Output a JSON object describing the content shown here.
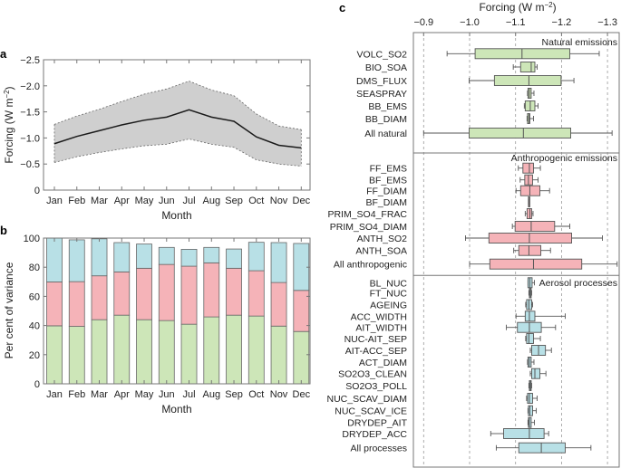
{
  "chart_data": [
    {
      "panel": "a",
      "type": "line",
      "panel_letter": "a",
      "xlabel": "Month",
      "ylabel": "Forcing (W m",
      "ylabel_sup": "−2",
      "ylabel_close": ")",
      "ylim": [
        0,
        -2.5
      ],
      "yticks": [
        0,
        -0.5,
        -1.0,
        -1.5,
        -2.0,
        -2.5
      ],
      "ytick_labels": [
        "0",
        "−0.5",
        "−1.0",
        "−1.5",
        "−2.0",
        "−2.5"
      ],
      "categories": [
        "Jan",
        "Feb",
        "Mar",
        "Apr",
        "May",
        "Jun",
        "Jul",
        "Aug",
        "Sep",
        "Oct",
        "Nov",
        "Dec"
      ],
      "series": [
        {
          "name": "mean",
          "values": [
            -0.89,
            -1.03,
            -1.14,
            -1.25,
            -1.34,
            -1.4,
            -1.54,
            -1.4,
            -1.32,
            -1.02,
            -0.86,
            -0.81
          ]
        },
        {
          "name": "upper bound",
          "values": [
            -1.26,
            -1.42,
            -1.55,
            -1.7,
            -1.84,
            -1.94,
            -2.09,
            -1.92,
            -1.81,
            -1.46,
            -1.23,
            -1.16
          ]
        },
        {
          "name": "lower bound",
          "values": [
            -0.53,
            -0.64,
            -0.72,
            -0.79,
            -0.85,
            -0.88,
            -0.98,
            -0.88,
            -0.82,
            -0.58,
            -0.5,
            -0.46
          ]
        }
      ],
      "grid": false,
      "colors": {
        "band": "#cfcfcf",
        "line": "#1a1a1a",
        "bound": "#666666"
      }
    },
    {
      "panel": "b",
      "type": "bar",
      "stacked": true,
      "panel_letter": "b",
      "xlabel": "Month",
      "ylabel": "Per cent of variance",
      "ylim": [
        0,
        100
      ],
      "yticks": [
        0,
        20,
        40,
        60,
        80,
        100
      ],
      "ytick_labels": [
        "0",
        "20",
        "40",
        "60",
        "80",
        "100"
      ],
      "categories": [
        "Jan",
        "Feb",
        "Mar",
        "Apr",
        "May",
        "Jun",
        "Jul",
        "Aug",
        "Sep",
        "Oct",
        "Nov",
        "Dec"
      ],
      "series": [
        {
          "name": "Natural emissions",
          "color": "#cde6b8",
          "values": [
            39.8,
            39.4,
            44.0,
            47.1,
            44.0,
            43.4,
            40.9,
            45.9,
            47.1,
            46.5,
            39.6,
            35.9
          ]
        },
        {
          "name": "Anthropogenic emissions",
          "color": "#f5b3b8",
          "values": [
            30.1,
            30.7,
            30.1,
            29.7,
            35.3,
            38.5,
            39.8,
            37.1,
            32.2,
            31.1,
            29.9,
            28.2
          ]
        },
        {
          "name": "Aerosol processes",
          "color": "#b8e0e6",
          "values": [
            30.1,
            28.7,
            25.4,
            20.1,
            16.6,
            11.7,
            11.6,
            10.6,
            13.2,
            19.5,
            27.4,
            32.2
          ]
        }
      ],
      "grid": false
    },
    {
      "panel": "c",
      "type": "boxplot",
      "panel_letter": "c",
      "title": "Forcing (W m",
      "title_sup": "−2",
      "title_close": ")",
      "xlim": [
        -0.87,
        -1.325
      ],
      "xticks": [
        -0.9,
        -1.0,
        -1.1,
        -1.2,
        -1.3
      ],
      "xtick_labels": [
        "−0.9",
        "−1.0",
        "−1.1",
        "−1.2",
        "−1.3"
      ],
      "grid": "vertical dashed",
      "groups": [
        {
          "name": "Natural emissions",
          "color": "#cde6b8",
          "items": [
            {
              "label": "VOLC_SO2",
              "wl": -0.951,
              "q1": -1.012,
              "med": -1.114,
              "q3": -1.218,
              "wh": -1.282
            },
            {
              "label": "BIO_SOA",
              "wl": -1.095,
              "q1": -1.111,
              "med": -1.134,
              "q3": -1.142,
              "wh": -1.147
            },
            {
              "label": "DMS_FLUX",
              "wl": -0.999,
              "q1": -1.054,
              "med": -1.129,
              "q3": -1.199,
              "wh": -1.227
            },
            {
              "label": "SEASPRAY",
              "wl": -1.126,
              "q1": -1.127,
              "med": -1.13,
              "q3": -1.134,
              "wh": -1.14
            },
            {
              "label": "BB_EMS",
              "wl": -1.119,
              "q1": -1.121,
              "med": -1.132,
              "q3": -1.142,
              "wh": -1.149
            },
            {
              "label": "BB_DIAM",
              "wl": -1.125,
              "q1": -1.126,
              "med": -1.129,
              "q3": -1.131,
              "wh": -1.139
            },
            {
              "label": "All natural",
              "wl": -0.9,
              "q1": -0.999,
              "med": -1.117,
              "q3": -1.22,
              "wh": -1.31
            }
          ]
        },
        {
          "name": "Anthropogenic emissions",
          "color": "#f5b3b8",
          "items": [
            {
              "label": "FF_EMS",
              "wl": -1.106,
              "q1": -1.116,
              "med": -1.13,
              "q3": -1.139,
              "wh": -1.154
            },
            {
              "label": "BF_EMS",
              "wl": -1.11,
              "q1": -1.12,
              "med": -1.128,
              "q3": -1.137,
              "wh": -1.149
            },
            {
              "label": "FF_DIAM",
              "wl": -1.101,
              "q1": -1.111,
              "med": -1.131,
              "q3": -1.153,
              "wh": -1.174
            },
            {
              "label": "BF_DIAM",
              "wl": -1.128,
              "q1": -1.128,
              "med": -1.129,
              "q3": -1.13,
              "wh": -1.13
            },
            {
              "label": "PRIM_SO4_FRAC",
              "wl": -1.121,
              "q1": -1.125,
              "med": -1.131,
              "q3": -1.135,
              "wh": -1.138
            },
            {
              "label": "PRIM_SO4_DIAM",
              "wl": -1.093,
              "q1": -1.099,
              "med": -1.134,
              "q3": -1.185,
              "wh": -1.218
            },
            {
              "label": "ANTH_SO2",
              "wl": -0.991,
              "q1": -1.042,
              "med": -1.13,
              "q3": -1.222,
              "wh": -1.289
            },
            {
              "label": "ANTH_SOA",
              "wl": -1.096,
              "q1": -1.107,
              "med": -1.129,
              "q3": -1.155,
              "wh": -1.176
            },
            {
              "label": "All anthropogenic",
              "wl": -1.0,
              "q1": -1.044,
              "med": -1.139,
              "q3": -1.244,
              "wh": -1.321
            }
          ]
        },
        {
          "name": "Aerosol processes",
          "color": "#b8e0e6",
          "items": [
            {
              "label": "BL_NUC",
              "wl": -1.127,
              "q1": -1.127,
              "med": -1.131,
              "q3": -1.136,
              "wh": -1.141
            },
            {
              "label": "FT_NUC",
              "wl": -1.129,
              "q1": -1.13,
              "med": -1.132,
              "q3": -1.134,
              "wh": -1.135
            },
            {
              "label": "AGEING",
              "wl": -1.122,
              "q1": -1.124,
              "med": -1.129,
              "q3": -1.135,
              "wh": -1.137
            },
            {
              "label": "ACC_WIDTH",
              "wl": -1.101,
              "q1": -1.121,
              "med": -1.13,
              "q3": -1.142,
              "wh": -1.208
            },
            {
              "label": "AIT_WIDTH",
              "wl": -1.08,
              "q1": -1.104,
              "med": -1.13,
              "q3": -1.156,
              "wh": -1.187
            },
            {
              "label": "NUC-AIT_SEP",
              "wl": -1.122,
              "q1": -1.124,
              "med": -1.129,
              "q3": -1.139,
              "wh": -1.154
            },
            {
              "label": "AIT-ACC_SEP",
              "wl": -1.132,
              "q1": -1.135,
              "med": -1.15,
              "q3": -1.165,
              "wh": -1.178
            },
            {
              "label": "ACT_DIAM",
              "wl": -1.126,
              "q1": -1.127,
              "med": -1.13,
              "q3": -1.134,
              "wh": -1.14
            },
            {
              "label": "SO2O3_CLEAN",
              "wl": -1.132,
              "q1": -1.135,
              "med": -1.142,
              "q3": -1.153,
              "wh": -1.166
            },
            {
              "label": "SO2O3_POLL",
              "wl": -1.129,
              "q1": -1.13,
              "med": -1.132,
              "q3": -1.134,
              "wh": -1.135
            },
            {
              "label": "NUC_SCAV_DIAM",
              "wl": -1.124,
              "q1": -1.126,
              "med": -1.13,
              "q3": -1.137,
              "wh": -1.147
            },
            {
              "label": "NUC_SCAV_ICE",
              "wl": -1.127,
              "q1": -1.128,
              "med": -1.131,
              "q3": -1.137,
              "wh": -1.145
            },
            {
              "label": "DRYDEP_AIT",
              "wl": -1.127,
              "q1": -1.128,
              "med": -1.13,
              "q3": -1.134,
              "wh": -1.141
            },
            {
              "label": "DRYDEP_ACC",
              "wl": -1.046,
              "q1": -1.074,
              "med": -1.13,
              "q3": -1.162,
              "wh": -1.172
            },
            {
              "label": "All processes",
              "wl": -1.058,
              "q1": -1.107,
              "med": -1.156,
              "q3": -1.208,
              "wh": -1.264
            }
          ]
        }
      ]
    }
  ]
}
